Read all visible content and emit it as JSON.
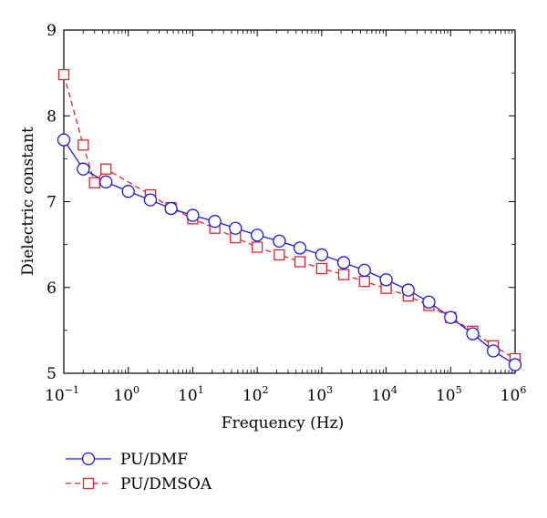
{
  "chart_data": {
    "type": "line",
    "xlabel": "Frequency (Hz)",
    "ylabel": "Dielectric constant",
    "x_scale": "log",
    "xlim": [
      0.1,
      1000000
    ],
    "ylim": [
      5,
      9
    ],
    "x_ticks": [
      {
        "base": "10",
        "exp": "−1",
        "value": 0.1
      },
      {
        "base": "10",
        "exp": "0",
        "value": 1
      },
      {
        "base": "10",
        "exp": "1",
        "value": 10
      },
      {
        "base": "10",
        "exp": "2",
        "value": 100
      },
      {
        "base": "10",
        "exp": "3",
        "value": 1000
      },
      {
        "base": "10",
        "exp": "4",
        "value": 10000
      },
      {
        "base": "10",
        "exp": "5",
        "value": 100000
      },
      {
        "base": "10",
        "exp": "6",
        "value": 1000000
      }
    ],
    "y_ticks": [
      "5",
      "6",
      "7",
      "8",
      "9"
    ],
    "grid": false,
    "legend_position": "below-left",
    "series": [
      {
        "name": "PU/DMF",
        "color": "#1a1adb",
        "marker": "circle",
        "line_style": "solid",
        "x": [
          0.1,
          0.2,
          0.45,
          1,
          2.2,
          4.6,
          10,
          22,
          46,
          100,
          220,
          460,
          1000,
          2200,
          4600,
          10000,
          22000,
          46000,
          100000,
          220000,
          460000,
          1000000
        ],
        "y": [
          7.72,
          7.38,
          7.23,
          7.12,
          7.02,
          6.92,
          6.84,
          6.77,
          6.69,
          6.61,
          6.54,
          6.46,
          6.38,
          6.29,
          6.2,
          6.09,
          5.97,
          5.83,
          5.65,
          5.46,
          5.26,
          5.1
        ]
      },
      {
        "name": "PU/DMSOA",
        "color": "#e0252b",
        "marker": "square",
        "line_style": "dashed",
        "x": [
          0.1,
          0.2,
          0.3,
          0.45,
          2.2,
          4.6,
          10,
          22,
          46,
          100,
          220,
          460,
          1000,
          2200,
          4600,
          10000,
          22000,
          46000,
          100000,
          220000,
          460000,
          1000000
        ],
        "y": [
          8.48,
          7.66,
          7.22,
          7.38,
          7.08,
          6.93,
          6.8,
          6.69,
          6.58,
          6.47,
          6.38,
          6.3,
          6.22,
          6.15,
          6.07,
          5.99,
          5.9,
          5.79,
          5.65,
          5.49,
          5.32,
          5.17
        ]
      }
    ]
  }
}
